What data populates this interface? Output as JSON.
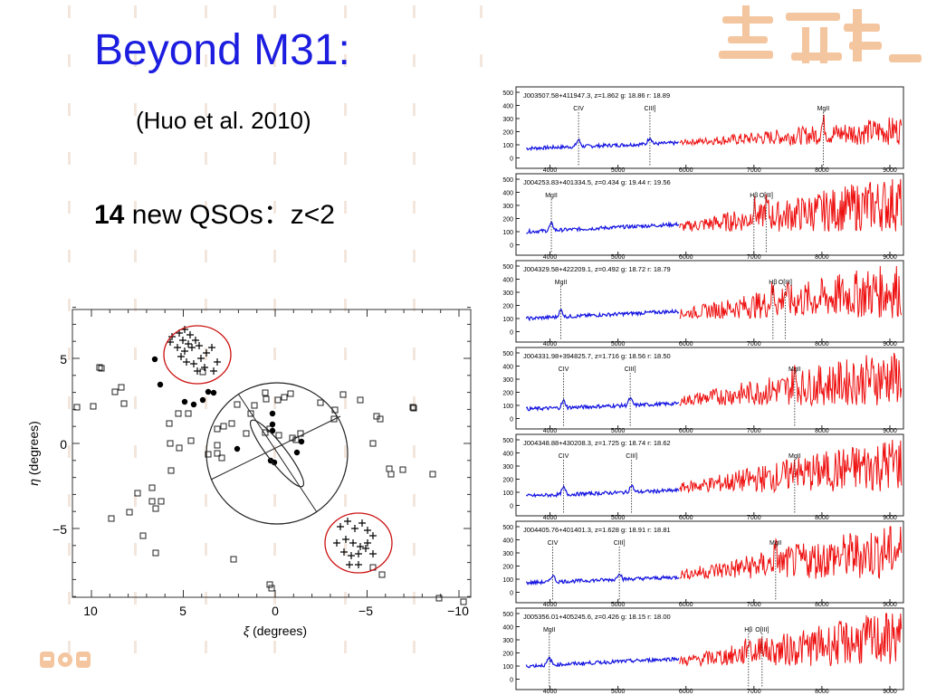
{
  "slide": {
    "title": "Beyond M31:",
    "reference": "(Huo et al. 2010)",
    "qso_count": "14",
    "qso_text": " new QSOs：z<2"
  },
  "sky_plot": {
    "xlabel_symbol": "ξ",
    "xlabel_unit": "(degrees)",
    "ylabel_symbol": "η",
    "ylabel_unit": "(degrees)",
    "xticks": [
      "10",
      "5",
      "0",
      "−5",
      "−10"
    ],
    "yticks": [
      "5",
      "0",
      "−5"
    ]
  },
  "spectra": [
    {
      "id": "J003507.58+411947.3,",
      "z": "z=1.862",
      "g": "g: 18.86",
      "r": "r: 18.89",
      "lines": [
        "CIV",
        "CIII]",
        "MgII"
      ]
    },
    {
      "id": "J004253.83+401334.5,",
      "z": "z=0.434",
      "g": "g: 19.44",
      "r": "r: 19.56",
      "lines": [
        "MgII",
        "Hβ",
        "O[III]"
      ]
    },
    {
      "id": "J004329.58+422209.1,",
      "z": "z=0.492",
      "g": "g: 18.72",
      "r": "r: 18.79",
      "lines": [
        "MgII",
        "Hβ",
        "O[III]"
      ]
    },
    {
      "id": "J004331.98+394825.7,",
      "z": "z=1.716",
      "g": "g: 18.56",
      "r": "r: 18.50",
      "lines": [
        "CIV",
        "CIII]",
        "MgII"
      ]
    },
    {
      "id": "J004348.88+430208.3,",
      "z": "z=1.725",
      "g": "g: 18.74",
      "r": "r: 18.62",
      "lines": [
        "CIV",
        "CIII]",
        "MgII"
      ]
    },
    {
      "id": "J004405.76+401401.3,",
      "z": "z=1.628",
      "g": "g: 18.91",
      "r": "r: 18.81",
      "lines": [
        "CIV",
        "CIII]",
        "MgII"
      ]
    },
    {
      "id": "J005356.01+405245.6,",
      "z": "z=0.426",
      "g": "g: 18.15",
      "r": "r: 18.00",
      "lines": [
        "MgII",
        "Hβ",
        "O[III]"
      ]
    }
  ],
  "spectra_axes": {
    "yticks": [
      "500",
      "400",
      "300",
      "200",
      "100",
      "0"
    ],
    "xticks": [
      "4000",
      "5000",
      "6000",
      "7000",
      "8000",
      "9000"
    ]
  },
  "colors": {
    "title": "#1d1de0",
    "blue_arm": "#1010e0",
    "red_arm": "#ee1010",
    "circle": "#cc1111",
    "logo": "#f4c6a0"
  }
}
